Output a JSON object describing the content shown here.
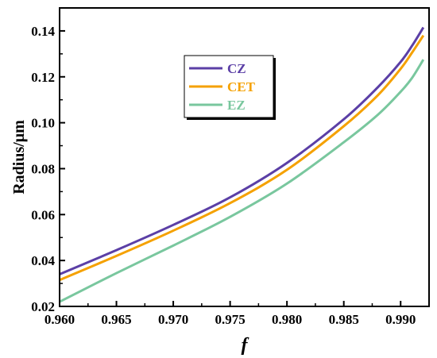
{
  "chart_data": {
    "type": "line",
    "xlabel": "f",
    "ylabel": "Radius/μm",
    "xlim": [
      0.96,
      0.9925
    ],
    "ylim": [
      0.02,
      0.15
    ],
    "xticks": [
      "0.960",
      "0.965",
      "0.970",
      "0.975",
      "0.980",
      "0.985",
      "0.990"
    ],
    "yticks": [
      "0.02",
      "0.04",
      "0.06",
      "0.08",
      "0.10",
      "0.12",
      "0.14"
    ],
    "grid": false,
    "legend_position": "top-center",
    "series": [
      {
        "name": "CZ",
        "color": "#5b3fa6",
        "x": [
          0.96,
          0.965,
          0.97,
          0.975,
          0.98,
          0.985,
          0.988,
          0.99,
          0.991,
          0.992
        ],
        "y": [
          0.034,
          0.0445,
          0.0555,
          0.0675,
          0.0825,
          0.1015,
          0.1155,
          0.1265,
          0.1335,
          0.1415
        ]
      },
      {
        "name": "CET",
        "color": "#f5a100",
        "x": [
          0.96,
          0.965,
          0.97,
          0.975,
          0.98,
          0.985,
          0.988,
          0.99,
          0.991,
          0.992
        ],
        "y": [
          0.0315,
          0.042,
          0.053,
          0.065,
          0.0795,
          0.0985,
          0.112,
          0.1235,
          0.1305,
          0.138
        ]
      },
      {
        "name": "EZ",
        "color": "#79c79e",
        "x": [
          0.96,
          0.965,
          0.97,
          0.975,
          0.98,
          0.985,
          0.988,
          0.99,
          0.991,
          0.992
        ],
        "y": [
          0.022,
          0.0345,
          0.0465,
          0.059,
          0.0735,
          0.0915,
          0.1035,
          0.1135,
          0.1195,
          0.1275
        ]
      }
    ]
  }
}
